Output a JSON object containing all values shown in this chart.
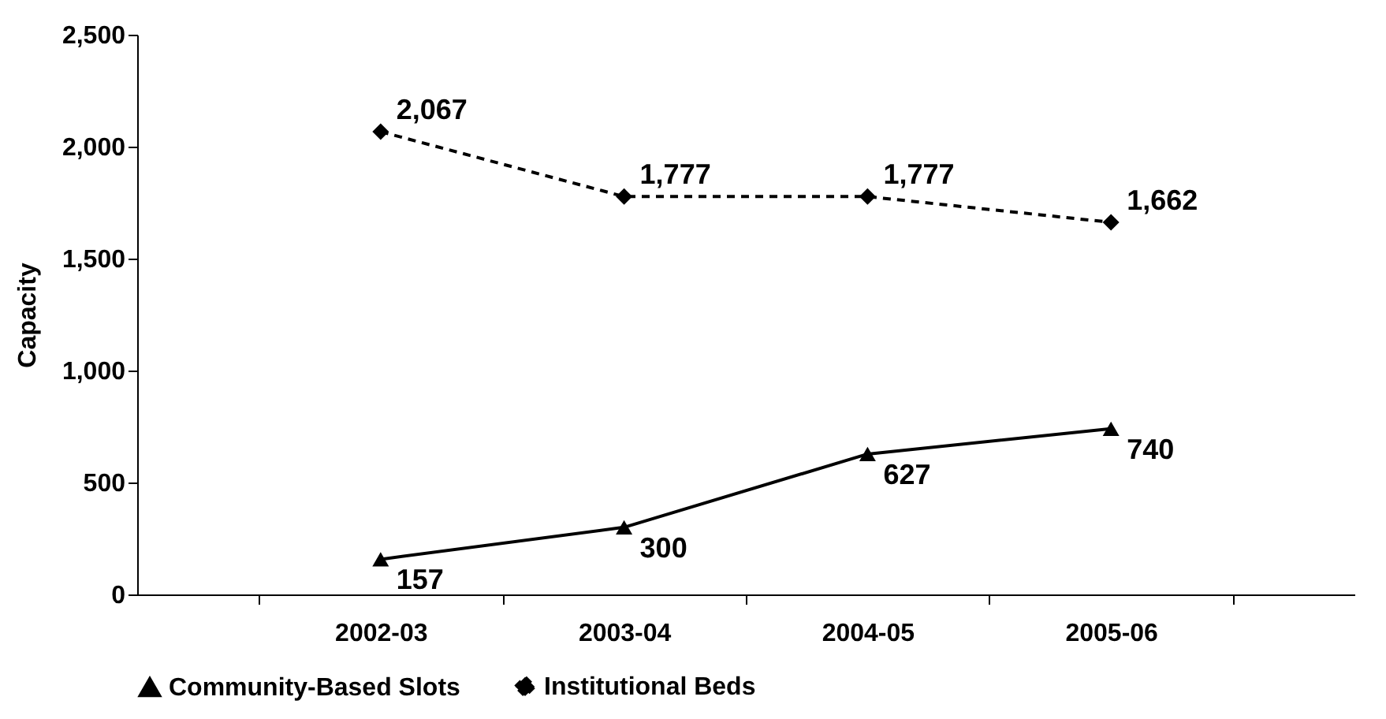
{
  "chart_data": {
    "type": "line",
    "ylabel": "Capacity",
    "categories": [
      "2002-03",
      "2003-04",
      "2004-05",
      "2005-06"
    ],
    "series": [
      {
        "name": "Community-Based Slots",
        "color": "#000000",
        "marker": "triangle",
        "line_style": "solid",
        "values": [
          157,
          300,
          627,
          740
        ],
        "value_labels": [
          "157",
          "300",
          "627",
          "740"
        ]
      },
      {
        "name": "Institutional Beds",
        "color": "#000000",
        "marker": "diamond",
        "line_style": "dashed",
        "values": [
          2067,
          1777,
          1777,
          1662
        ],
        "value_labels": [
          "2,067",
          "1,777",
          "1,777",
          "1,662"
        ]
      }
    ],
    "ylim": [
      0,
      2500
    ],
    "yticks": [
      0,
      500,
      {
        "value": 1000,
        "label": "1,000"
      },
      {
        "value": 1500,
        "label": "1,500"
      },
      {
        "value": 2000,
        "label": "2,000"
      },
      {
        "value": 2500,
        "label": "2,500"
      }
    ],
    "grid": false,
    "legend": "bottom"
  }
}
